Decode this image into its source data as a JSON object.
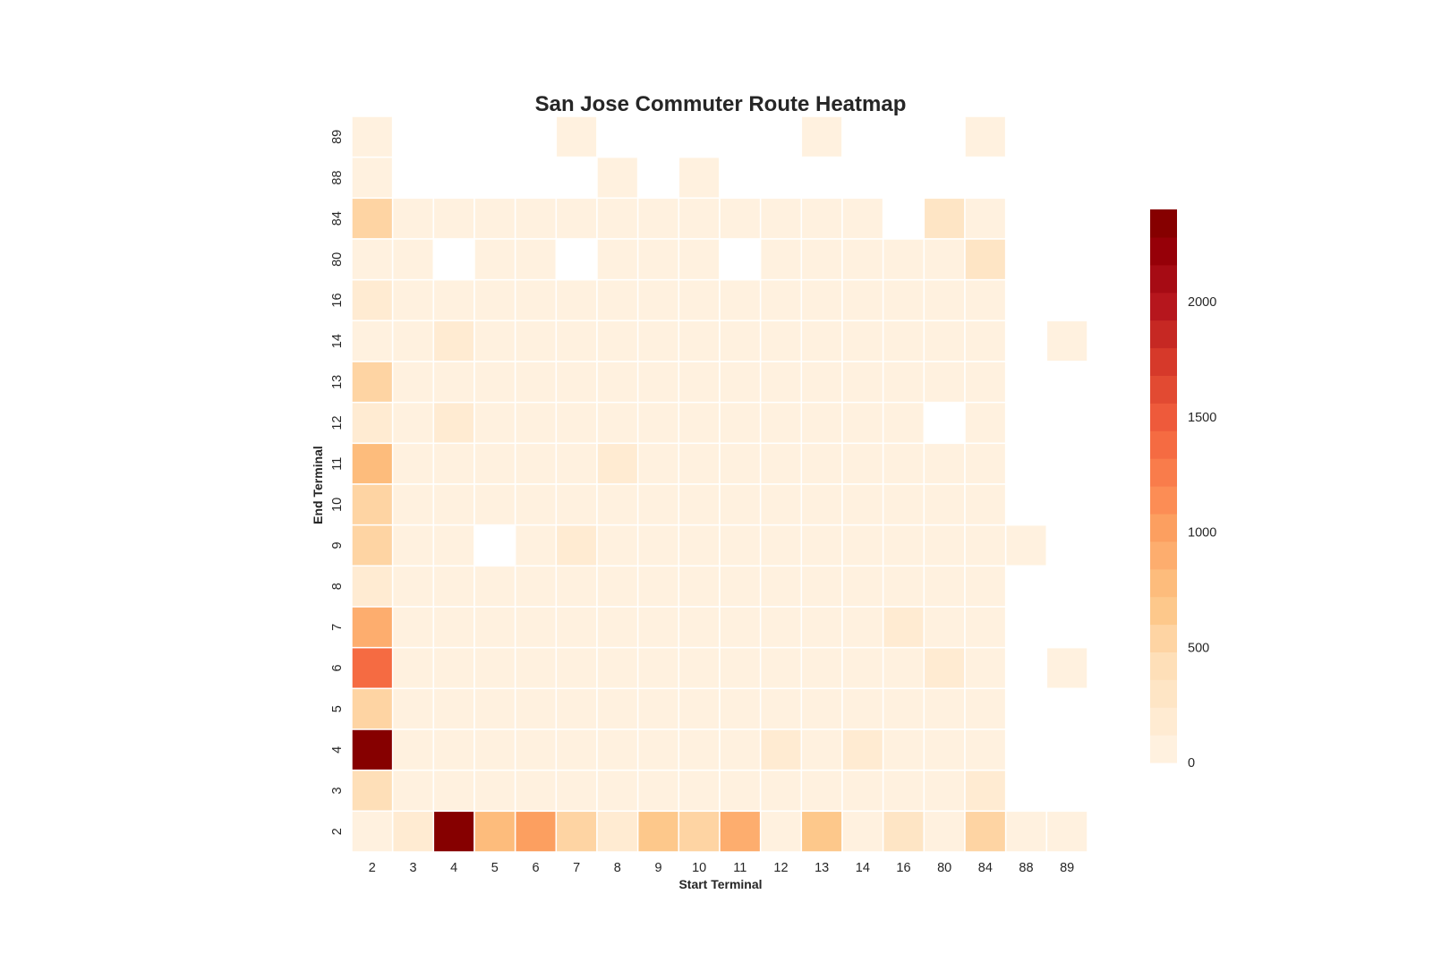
{
  "chart_data": {
    "type": "heatmap",
    "title": "San Jose Commuter Route Heatmap",
    "xlabel": "Start Terminal",
    "ylabel": "End Terminal",
    "x_categories": [
      "2",
      "3",
      "4",
      "5",
      "6",
      "7",
      "8",
      "9",
      "10",
      "11",
      "12",
      "13",
      "14",
      "16",
      "80",
      "84",
      "88",
      "89"
    ],
    "y_categories": [
      "89",
      "88",
      "84",
      "80",
      "16",
      "14",
      "13",
      "12",
      "11",
      "10",
      "9",
      "8",
      "7",
      "6",
      "5",
      "4",
      "3",
      "2"
    ],
    "values": [
      [
        30,
        null,
        null,
        null,
        null,
        30,
        null,
        null,
        null,
        null,
        null,
        30,
        null,
        null,
        null,
        30,
        null,
        null
      ],
      [
        40,
        null,
        null,
        null,
        null,
        null,
        30,
        null,
        30,
        null,
        null,
        null,
        null,
        null,
        null,
        null,
        null,
        null
      ],
      [
        520,
        60,
        60,
        50,
        50,
        50,
        40,
        40,
        40,
        50,
        50,
        50,
        40,
        null,
        280,
        40,
        null,
        null
      ],
      [
        80,
        40,
        null,
        40,
        40,
        null,
        50,
        50,
        40,
        null,
        40,
        40,
        40,
        40,
        40,
        250,
        null,
        null
      ],
      [
        170,
        50,
        50,
        40,
        40,
        40,
        40,
        40,
        40,
        40,
        40,
        40,
        40,
        40,
        40,
        40,
        null,
        null
      ],
      [
        70,
        50,
        190,
        50,
        50,
        40,
        40,
        40,
        40,
        40,
        40,
        40,
        40,
        40,
        40,
        40,
        null,
        50
      ],
      [
        580,
        40,
        60,
        50,
        50,
        40,
        40,
        40,
        40,
        40,
        40,
        40,
        40,
        40,
        40,
        40,
        null,
        null
      ],
      [
        130,
        50,
        230,
        50,
        50,
        40,
        40,
        40,
        40,
        40,
        40,
        40,
        40,
        40,
        null,
        40,
        null,
        null
      ],
      [
        780,
        50,
        40,
        50,
        40,
        40,
        140,
        40,
        40,
        40,
        40,
        40,
        40,
        40,
        40,
        40,
        null,
        null
      ],
      [
        490,
        60,
        60,
        50,
        50,
        40,
        40,
        40,
        40,
        40,
        40,
        40,
        40,
        40,
        40,
        40,
        null,
        null
      ],
      [
        560,
        40,
        40,
        null,
        40,
        150,
        40,
        40,
        40,
        40,
        40,
        40,
        40,
        40,
        40,
        40,
        50,
        null
      ],
      [
        160,
        60,
        60,
        50,
        50,
        40,
        40,
        40,
        100,
        40,
        40,
        40,
        40,
        40,
        40,
        40,
        null,
        null
      ],
      [
        850,
        50,
        50,
        50,
        50,
        40,
        40,
        40,
        40,
        40,
        40,
        40,
        40,
        130,
        40,
        40,
        null,
        null
      ],
      [
        1320,
        60,
        60,
        50,
        50,
        40,
        40,
        40,
        40,
        40,
        40,
        40,
        40,
        40,
        150,
        40,
        null,
        60
      ],
      [
        580,
        60,
        60,
        50,
        50,
        40,
        40,
        40,
        40,
        40,
        40,
        40,
        40,
        40,
        40,
        40,
        null,
        null
      ],
      [
        2380,
        50,
        60,
        50,
        50,
        40,
        40,
        40,
        40,
        40,
        190,
        40,
        150,
        40,
        40,
        40,
        null,
        null
      ],
      [
        380,
        50,
        60,
        50,
        50,
        40,
        40,
        40,
        40,
        40,
        40,
        40,
        40,
        40,
        40,
        170,
        null,
        null
      ],
      [
        60,
        200,
        2400,
        750,
        1070,
        560,
        140,
        620,
        580,
        860,
        60,
        620,
        50,
        290,
        60,
        580,
        50,
        50
      ]
    ],
    "colorbar": {
      "min": 0,
      "max": 2400,
      "ticks": [
        0,
        500,
        1000,
        1500,
        2000
      ],
      "colors": [
        "#fff1df",
        "#ffebd2",
        "#fee5c5",
        "#fedfb8",
        "#fed4a3",
        "#fdc88b",
        "#fdbc7c",
        "#fdad6e",
        "#fc9f60",
        "#fc8d55",
        "#f97c4b",
        "#f56b42",
        "#ee5a3b",
        "#e24a32",
        "#d6392a",
        "#c62823",
        "#b6161d",
        "#a60b14",
        "#960008",
        "#860000"
      ],
      "null_color": "#ffffff"
    }
  }
}
